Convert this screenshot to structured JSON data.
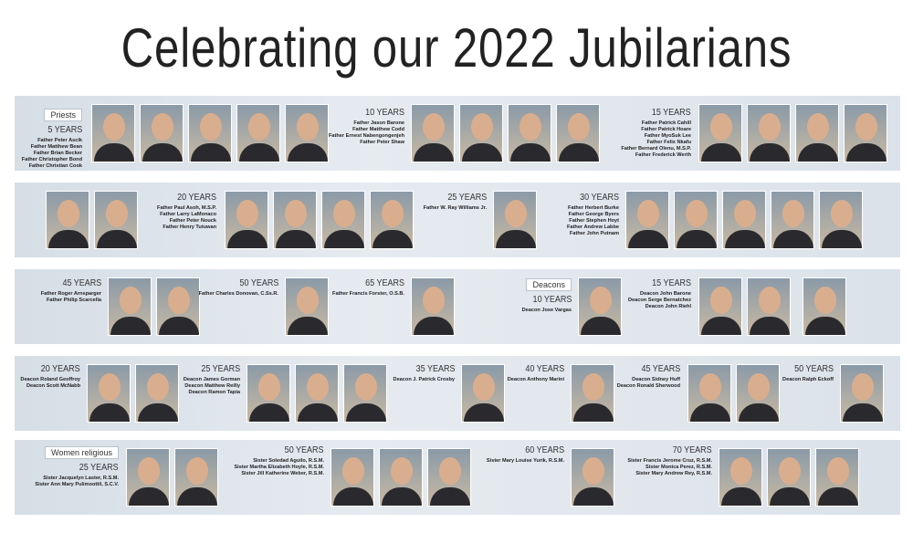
{
  "title": "Celebrating our 2022 Jubilarians",
  "rows": [
    {
      "groups": [
        {
          "section": "Priests",
          "heading": "5 YEARS",
          "names": [
            "Father Peter Ascik",
            "Father Matthew Bean",
            "Father Brian Becker",
            "Father Christopher Bond",
            "Father Christian Cook"
          ]
        },
        {
          "heading": "10 YEARS",
          "names": [
            "Father Jason Barone",
            "Father Matthew Codd",
            "Father Ernest Nabengongenjeh",
            "Father Peter Shaw"
          ]
        },
        {
          "heading": "15 YEARS",
          "names": [
            "Father Patrick Cahill",
            "Father Patrick Hoare",
            "Father MyoSuk Lee",
            "Father Felix Nkafu",
            "Father Bernard Olenu, M.S.P.",
            "Father Frederick Werth"
          ]
        }
      ]
    },
    {
      "groups": [
        {
          "heading": "20 YEARS",
          "names": [
            "Father Paul Asoh, M.S.P.",
            "Father Larry LaMonaco",
            "Father Peter Nouck",
            "Father Henry Tutuwan"
          ]
        },
        {
          "heading": "25 YEARS",
          "names": [
            "Father W. Ray Williams Jr."
          ]
        },
        {
          "heading": "30 YEARS",
          "names": [
            "Father Herbert Burke",
            "Father George Byers",
            "Father Stephen Hoyt",
            "Father Andrew Labbe",
            "Father John Putnam"
          ]
        }
      ]
    },
    {
      "groups": [
        {
          "heading": "45 YEARS",
          "names": [
            "Father Roger Arnsparger",
            "Father Philip Scarcella"
          ]
        },
        {
          "heading": "50 YEARS",
          "names": [
            "Father Charles Donovan, C.Ss.R."
          ]
        },
        {
          "heading": "65 YEARS",
          "names": [
            "Father Francis Forster, O.S.B."
          ]
        },
        {
          "section": "Deacons",
          "heading": "10 YEARS",
          "names": [
            "Deacon Jose Vargas"
          ]
        },
        {
          "heading": "15 YEARS",
          "names": [
            "Deacon John Barone",
            "Deacon Serge Bernatchez",
            "Deacon John Riehl"
          ]
        }
      ]
    },
    {
      "groups": [
        {
          "heading": "20 YEARS",
          "names": [
            "Deacon Roland Geoffroy",
            "Deacon Scott McNabb"
          ]
        },
        {
          "heading": "25 YEARS",
          "names": [
            "Deacon James Gorman",
            "Deacon Matthew Reilly",
            "Deacon Ramon Tapia"
          ]
        },
        {
          "heading": "35 YEARS",
          "names": [
            "Deacon J. Patrick Crosby"
          ]
        },
        {
          "heading": "40 YEARS",
          "names": [
            "Deacon Anthony Marini"
          ]
        },
        {
          "heading": "45 YEARS",
          "names": [
            "Deacon Sidney Huff",
            "Deacon Ronald Sherwood"
          ]
        },
        {
          "heading": "50 YEARS",
          "names": [
            "Deacon Ralph Eckoff"
          ]
        }
      ]
    },
    {
      "groups": [
        {
          "section": "Women religious",
          "heading": "25 YEARS",
          "names": [
            "Sister Jacquelyn Laster, R.S.M.",
            "Sister Ann Mary Pulimoottil, S.C.V."
          ]
        },
        {
          "heading": "50 YEARS",
          "names": [
            "Sister Soledad Aguilo, R.S.M.",
            "Sister Martha Elizabeth Hoyle, R.S.M.",
            "Sister Jill Katherine Weber, R.S.M."
          ]
        },
        {
          "heading": "60 YEARS",
          "names": [
            "Sister Mary Louise Yurik, R.S.M."
          ]
        },
        {
          "heading": "70 YEARS",
          "names": [
            "Sister Francis Jerome Cruz, R.S.M.",
            "Sister Monica Perez, R.S.M.",
            "Sister Mary Andrew Rey, R.S.M."
          ]
        }
      ]
    }
  ]
}
